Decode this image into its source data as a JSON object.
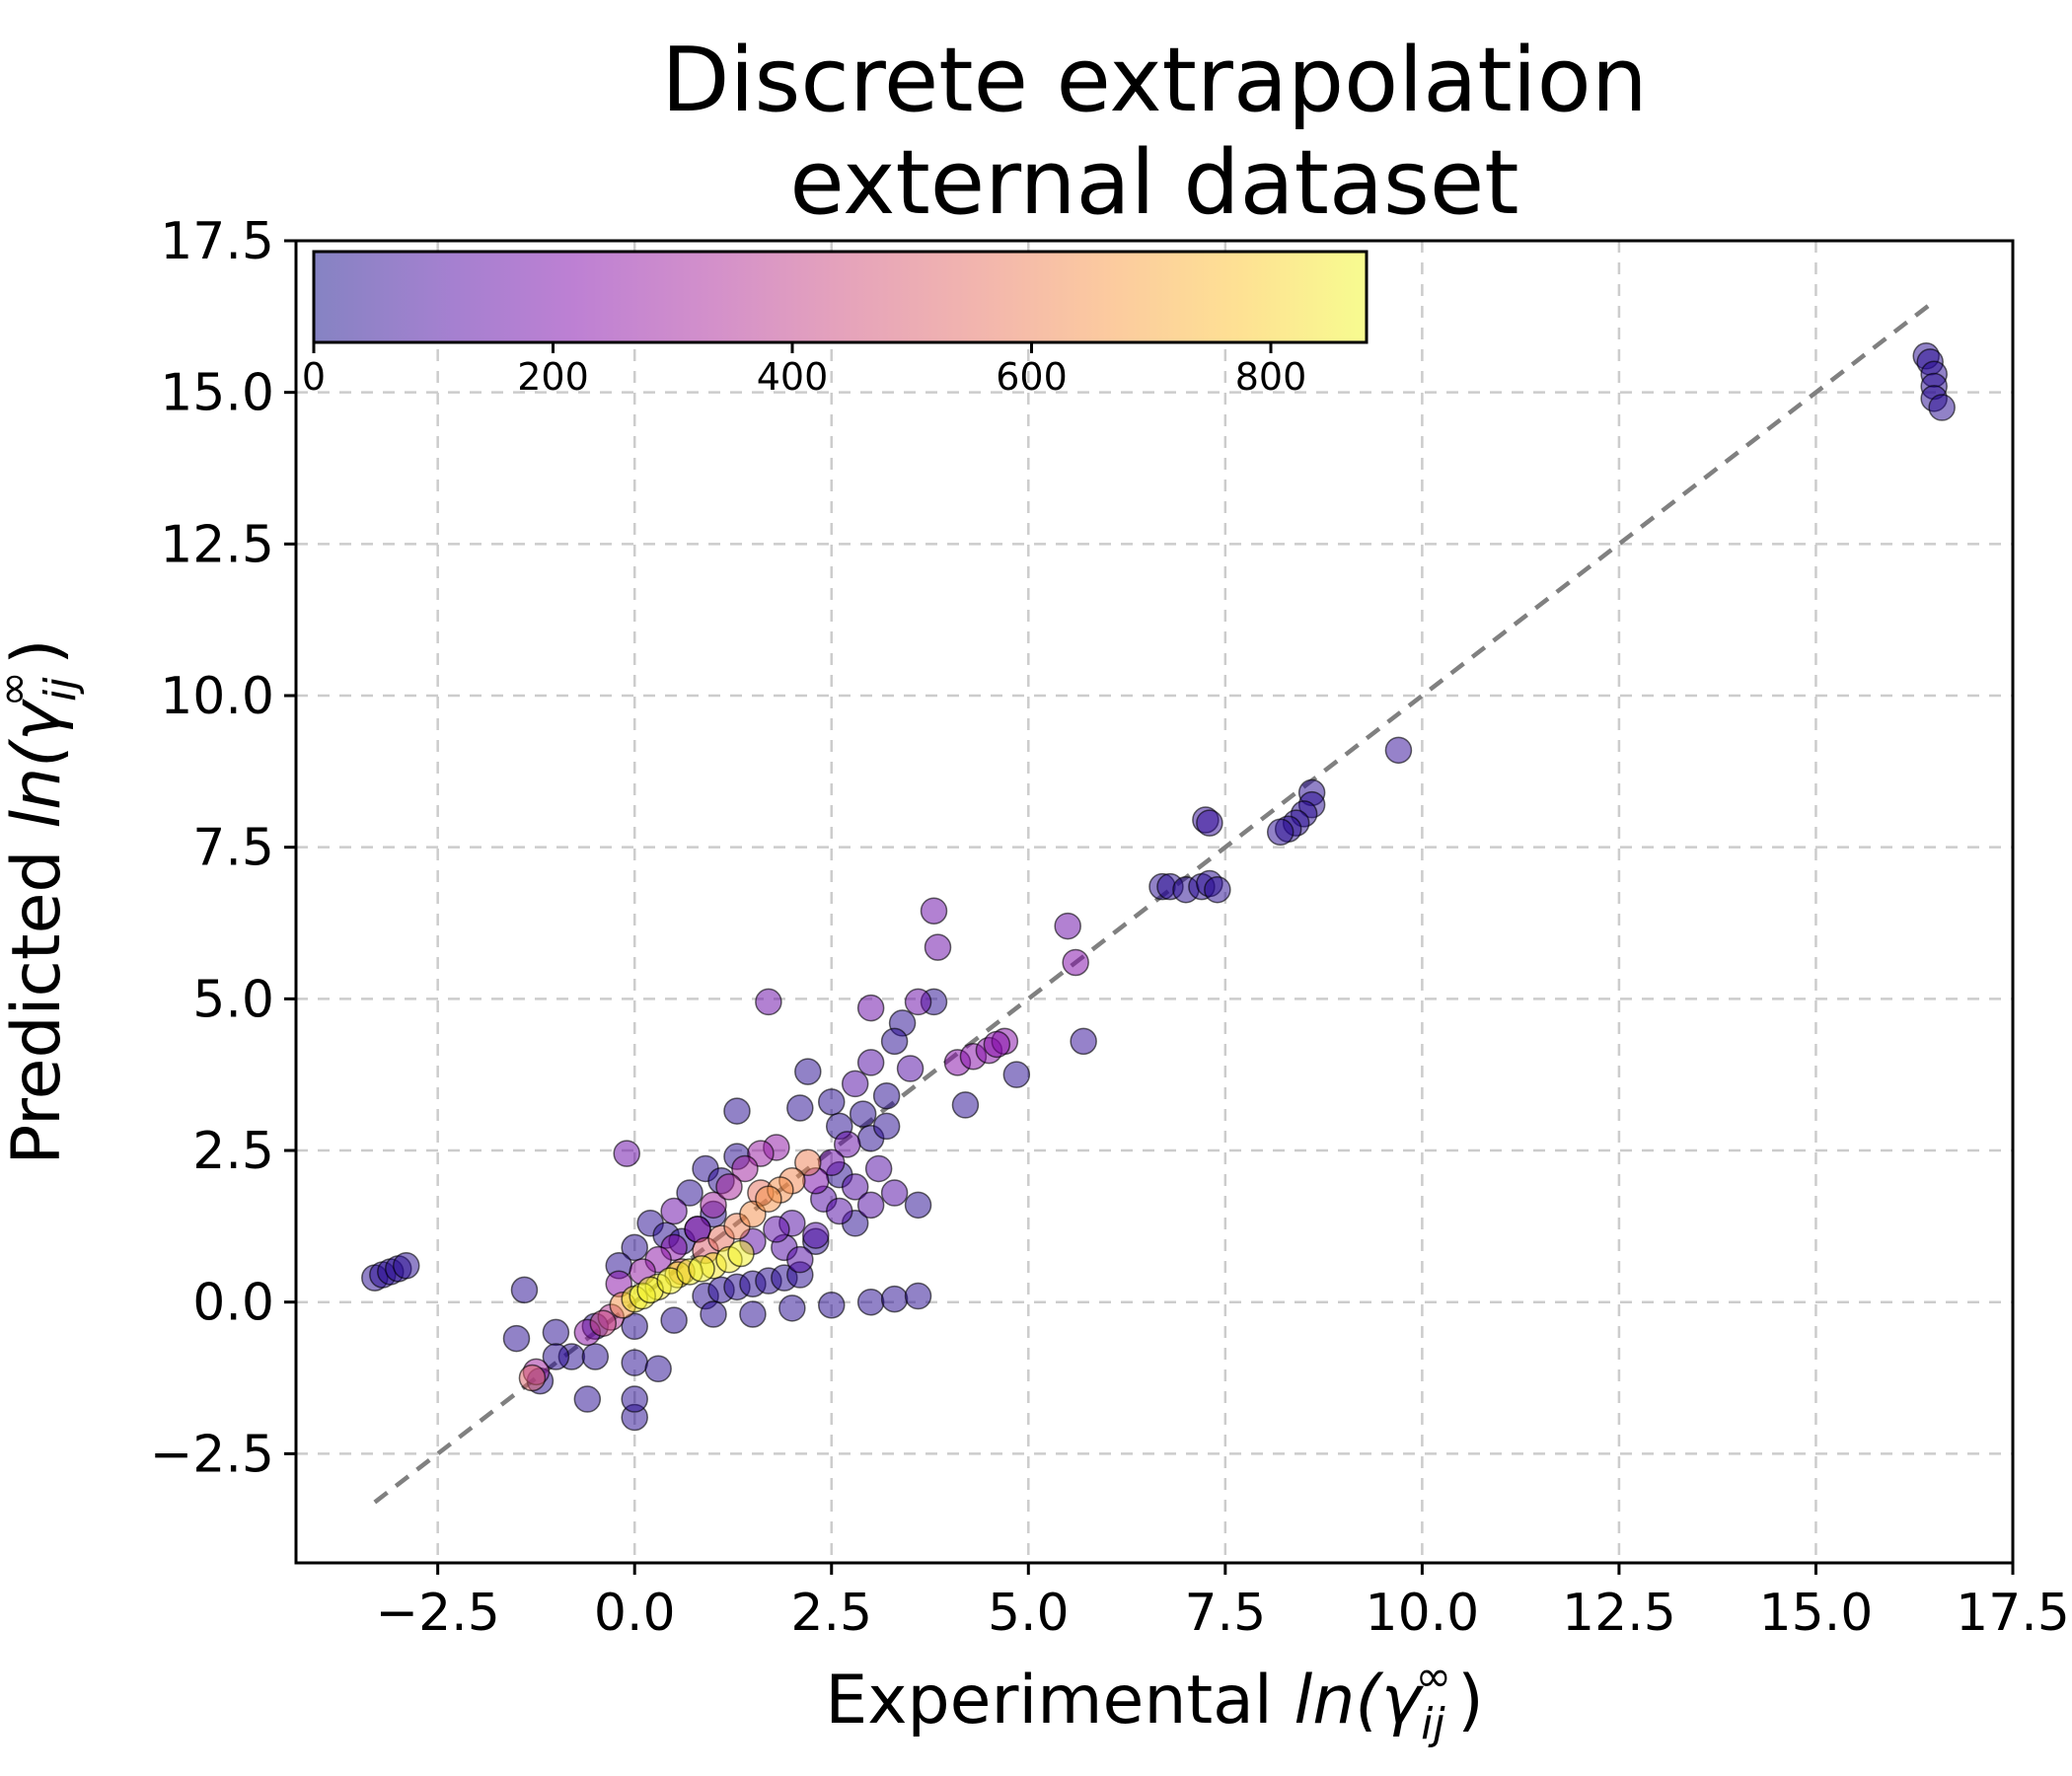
{
  "chart_data": {
    "type": "scatter",
    "title_lines": [
      "Discrete extrapolation",
      "external dataset"
    ],
    "xlabel": {
      "prefix": "Experimental ",
      "math": "ln(γ",
      "sub": "ij",
      "sup": "∞",
      "close": ")"
    },
    "ylabel": {
      "prefix": "Predicted ",
      "math": "ln(γ",
      "sub": "ij",
      "sup": "∞",
      "close": ")"
    },
    "xlim": [
      -4.3,
      17.5
    ],
    "ylim": [
      -4.3,
      17.5
    ],
    "x_ticks": [
      -2.5,
      0.0,
      2.5,
      5.0,
      7.5,
      10.0,
      12.5,
      15.0,
      17.5
    ],
    "y_ticks": [
      -2.5,
      0.0,
      2.5,
      5.0,
      7.5,
      10.0,
      12.5,
      15.0,
      17.5
    ],
    "x_tick_labels": [
      "−2.5",
      "0.0",
      "2.5",
      "5.0",
      "7.5",
      "10.0",
      "12.5",
      "15.0",
      "17.5"
    ],
    "y_tick_labels": [
      "−2.5",
      "0.0",
      "2.5",
      "5.0",
      "7.5",
      "10.0",
      "12.5",
      "15.0",
      "17.5"
    ],
    "grid": true,
    "parity_line": {
      "x": [
        -3.3,
        16.5
      ],
      "y": [
        -3.3,
        16.5
      ],
      "style": "dashed",
      "color": "#808080"
    },
    "colorbar": {
      "colormap": "plasma",
      "alpha": 0.5,
      "min": 0,
      "max": 880,
      "ticks": [
        0,
        200,
        400,
        600,
        800
      ],
      "tick_labels": [
        "0",
        "200",
        "400",
        "600",
        "800"
      ],
      "placement": "top-left inset"
    },
    "marker_edge_color": "#000000",
    "points": [
      [
        -3.3,
        0.4,
        40
      ],
      [
        -3.2,
        0.45,
        40
      ],
      [
        -3.1,
        0.5,
        40
      ],
      [
        -3.0,
        0.55,
        40
      ],
      [
        -2.9,
        0.6,
        40
      ],
      [
        16.4,
        15.6,
        40
      ],
      [
        16.45,
        15.5,
        40
      ],
      [
        16.5,
        15.3,
        40
      ],
      [
        16.5,
        15.1,
        40
      ],
      [
        16.5,
        14.9,
        40
      ],
      [
        16.6,
        14.75,
        40
      ],
      [
        9.7,
        9.1,
        60
      ],
      [
        8.6,
        8.4,
        40
      ],
      [
        8.6,
        8.2,
        40
      ],
      [
        8.5,
        8.05,
        40
      ],
      [
        8.4,
        7.9,
        40
      ],
      [
        8.3,
        7.8,
        40
      ],
      [
        8.2,
        7.75,
        40
      ],
      [
        7.25,
        7.95,
        60
      ],
      [
        7.3,
        7.9,
        60
      ],
      [
        6.7,
        6.85,
        40
      ],
      [
        6.8,
        6.85,
        40
      ],
      [
        7.0,
        6.8,
        40
      ],
      [
        7.2,
        6.85,
        40
      ],
      [
        7.3,
        6.9,
        40
      ],
      [
        7.4,
        6.8,
        40
      ],
      [
        5.7,
        4.3,
        60
      ],
      [
        5.5,
        6.2,
        170
      ],
      [
        5.6,
        5.6,
        220
      ],
      [
        3.8,
        6.45,
        170
      ],
      [
        3.85,
        5.85,
        170
      ],
      [
        1.7,
        4.95,
        170
      ],
      [
        4.85,
        3.75,
        40
      ],
      [
        4.2,
        3.25,
        40
      ],
      [
        3.6,
        1.6,
        40
      ],
      [
        2.2,
        3.8,
        40
      ],
      [
        1.3,
        3.15,
        40
      ],
      [
        -0.1,
        2.45,
        170
      ],
      [
        0.5,
        1.5,
        170
      ],
      [
        -1.4,
        0.2,
        40
      ],
      [
        -1.5,
        -0.6,
        40
      ],
      [
        -1.2,
        -1.3,
        40
      ],
      [
        -0.6,
        -1.6,
        40
      ],
      [
        0.0,
        -1.9,
        40
      ],
      [
        0.0,
        -1.6,
        40
      ],
      [
        -1.3,
        -1.25,
        520
      ],
      [
        -1.25,
        -1.15,
        300
      ],
      [
        4.1,
        3.95,
        230
      ],
      [
        4.3,
        4.05,
        230
      ],
      [
        4.5,
        4.15,
        230
      ],
      [
        4.7,
        4.3,
        230
      ],
      [
        4.6,
        4.25,
        230
      ],
      [
        3.4,
        4.6,
        40
      ],
      [
        3.6,
        4.95,
        170
      ],
      [
        3.8,
        4.95,
        40
      ],
      [
        3.0,
        4.85,
        170
      ],
      [
        3.3,
        4.3,
        40
      ],
      [
        3.0,
        3.95,
        120
      ],
      [
        3.5,
        3.85,
        120
      ],
      [
        2.8,
        3.6,
        120
      ],
      [
        -0.6,
        -0.5,
        250
      ],
      [
        -0.4,
        -0.35,
        420
      ],
      [
        -0.3,
        -0.25,
        360
      ],
      [
        -0.15,
        -0.05,
        650
      ],
      [
        0.0,
        0.05,
        850
      ],
      [
        0.1,
        0.1,
        860
      ],
      [
        0.2,
        0.2,
        860
      ],
      [
        0.3,
        0.25,
        850
      ],
      [
        0.45,
        0.35,
        860
      ],
      [
        0.55,
        0.45,
        820
      ],
      [
        0.7,
        0.5,
        860
      ],
      [
        0.85,
        0.55,
        860
      ],
      [
        1.0,
        0.6,
        840
      ],
      [
        1.2,
        0.7,
        850
      ],
      [
        1.35,
        0.8,
        860
      ],
      [
        0.6,
        0.5,
        520
      ],
      [
        0.9,
        0.85,
        500
      ],
      [
        1.1,
        1.05,
        560
      ],
      [
        1.3,
        1.25,
        600
      ],
      [
        1.5,
        1.45,
        640
      ],
      [
        1.7,
        1.7,
        650
      ],
      [
        1.85,
        1.85,
        640
      ],
      [
        2.0,
        2.0,
        620
      ],
      [
        2.2,
        2.3,
        600
      ],
      [
        1.6,
        1.8,
        560
      ],
      [
        1.0,
        1.6,
        300
      ],
      [
        1.2,
        1.9,
        320
      ],
      [
        1.4,
        2.2,
        300
      ],
      [
        1.6,
        2.45,
        280
      ],
      [
        1.8,
        2.55,
        260
      ],
      [
        0.8,
        1.2,
        250
      ],
      [
        0.5,
        0.9,
        240
      ],
      [
        0.3,
        0.7,
        250
      ],
      [
        0.1,
        0.5,
        270
      ],
      [
        -0.2,
        0.3,
        240
      ],
      [
        2.3,
        2.0,
        200
      ],
      [
        2.5,
        2.3,
        170
      ],
      [
        2.7,
        2.6,
        160
      ],
      [
        2.4,
        1.7,
        120
      ],
      [
        2.8,
        1.9,
        120
      ],
      [
        3.1,
        2.2,
        120
      ],
      [
        2.0,
        1.3,
        120
      ],
      [
        2.3,
        1.1,
        120
      ],
      [
        2.6,
        1.5,
        120
      ],
      [
        3.0,
        1.6,
        120
      ],
      [
        3.3,
        1.8,
        120
      ],
      [
        1.5,
        1.0,
        140
      ],
      [
        1.8,
        1.2,
        140
      ],
      [
        1.9,
        0.9,
        120
      ],
      [
        2.1,
        0.7,
        120
      ],
      [
        0.9,
        0.1,
        40
      ],
      [
        1.1,
        0.2,
        40
      ],
      [
        1.3,
        0.25,
        40
      ],
      [
        1.5,
        0.3,
        40
      ],
      [
        1.7,
        0.35,
        40
      ],
      [
        1.9,
        0.4,
        40
      ],
      [
        2.1,
        0.45,
        40
      ],
      [
        0.2,
        1.3,
        40
      ],
      [
        0.4,
        1.1,
        40
      ],
      [
        0.6,
        1.0,
        40
      ],
      [
        0.0,
        0.9,
        40
      ],
      [
        -0.2,
        0.6,
        40
      ],
      [
        0.8,
        1.2,
        40
      ],
      [
        1.0,
        -0.2,
        40
      ],
      [
        1.5,
        -0.2,
        40
      ],
      [
        2.0,
        -0.1,
        40
      ],
      [
        2.5,
        -0.05,
        40
      ],
      [
        3.0,
        0.0,
        40
      ],
      [
        3.3,
        0.05,
        40
      ],
      [
        3.6,
        0.1,
        40
      ],
      [
        0.5,
        -0.3,
        40
      ],
      [
        0.0,
        -0.4,
        40
      ],
      [
        -0.5,
        -0.4,
        40
      ],
      [
        -1.0,
        -0.5,
        40
      ],
      [
        -0.8,
        -0.9,
        40
      ],
      [
        -0.5,
        -0.9,
        40
      ],
      [
        0.0,
        -1.0,
        40
      ],
      [
        0.3,
        -1.1,
        40
      ],
      [
        -1.0,
        -0.9,
        40
      ],
      [
        2.6,
        2.9,
        40
      ],
      [
        2.9,
        3.1,
        40
      ],
      [
        3.2,
        3.4,
        40
      ],
      [
        3.0,
        2.7,
        40
      ],
      [
        2.6,
        2.1,
        40
      ],
      [
        3.2,
        2.9,
        40
      ],
      [
        2.5,
        3.3,
        40
      ],
      [
        2.1,
        3.2,
        40
      ],
      [
        2.3,
        1.0,
        40
      ],
      [
        2.8,
        1.3,
        40
      ],
      [
        0.9,
        2.2,
        40
      ],
      [
        1.1,
        2.0,
        40
      ],
      [
        0.7,
        1.8,
        40
      ],
      [
        1.3,
        2.4,
        40
      ],
      [
        1.0,
        1.45,
        40
      ]
    ]
  }
}
